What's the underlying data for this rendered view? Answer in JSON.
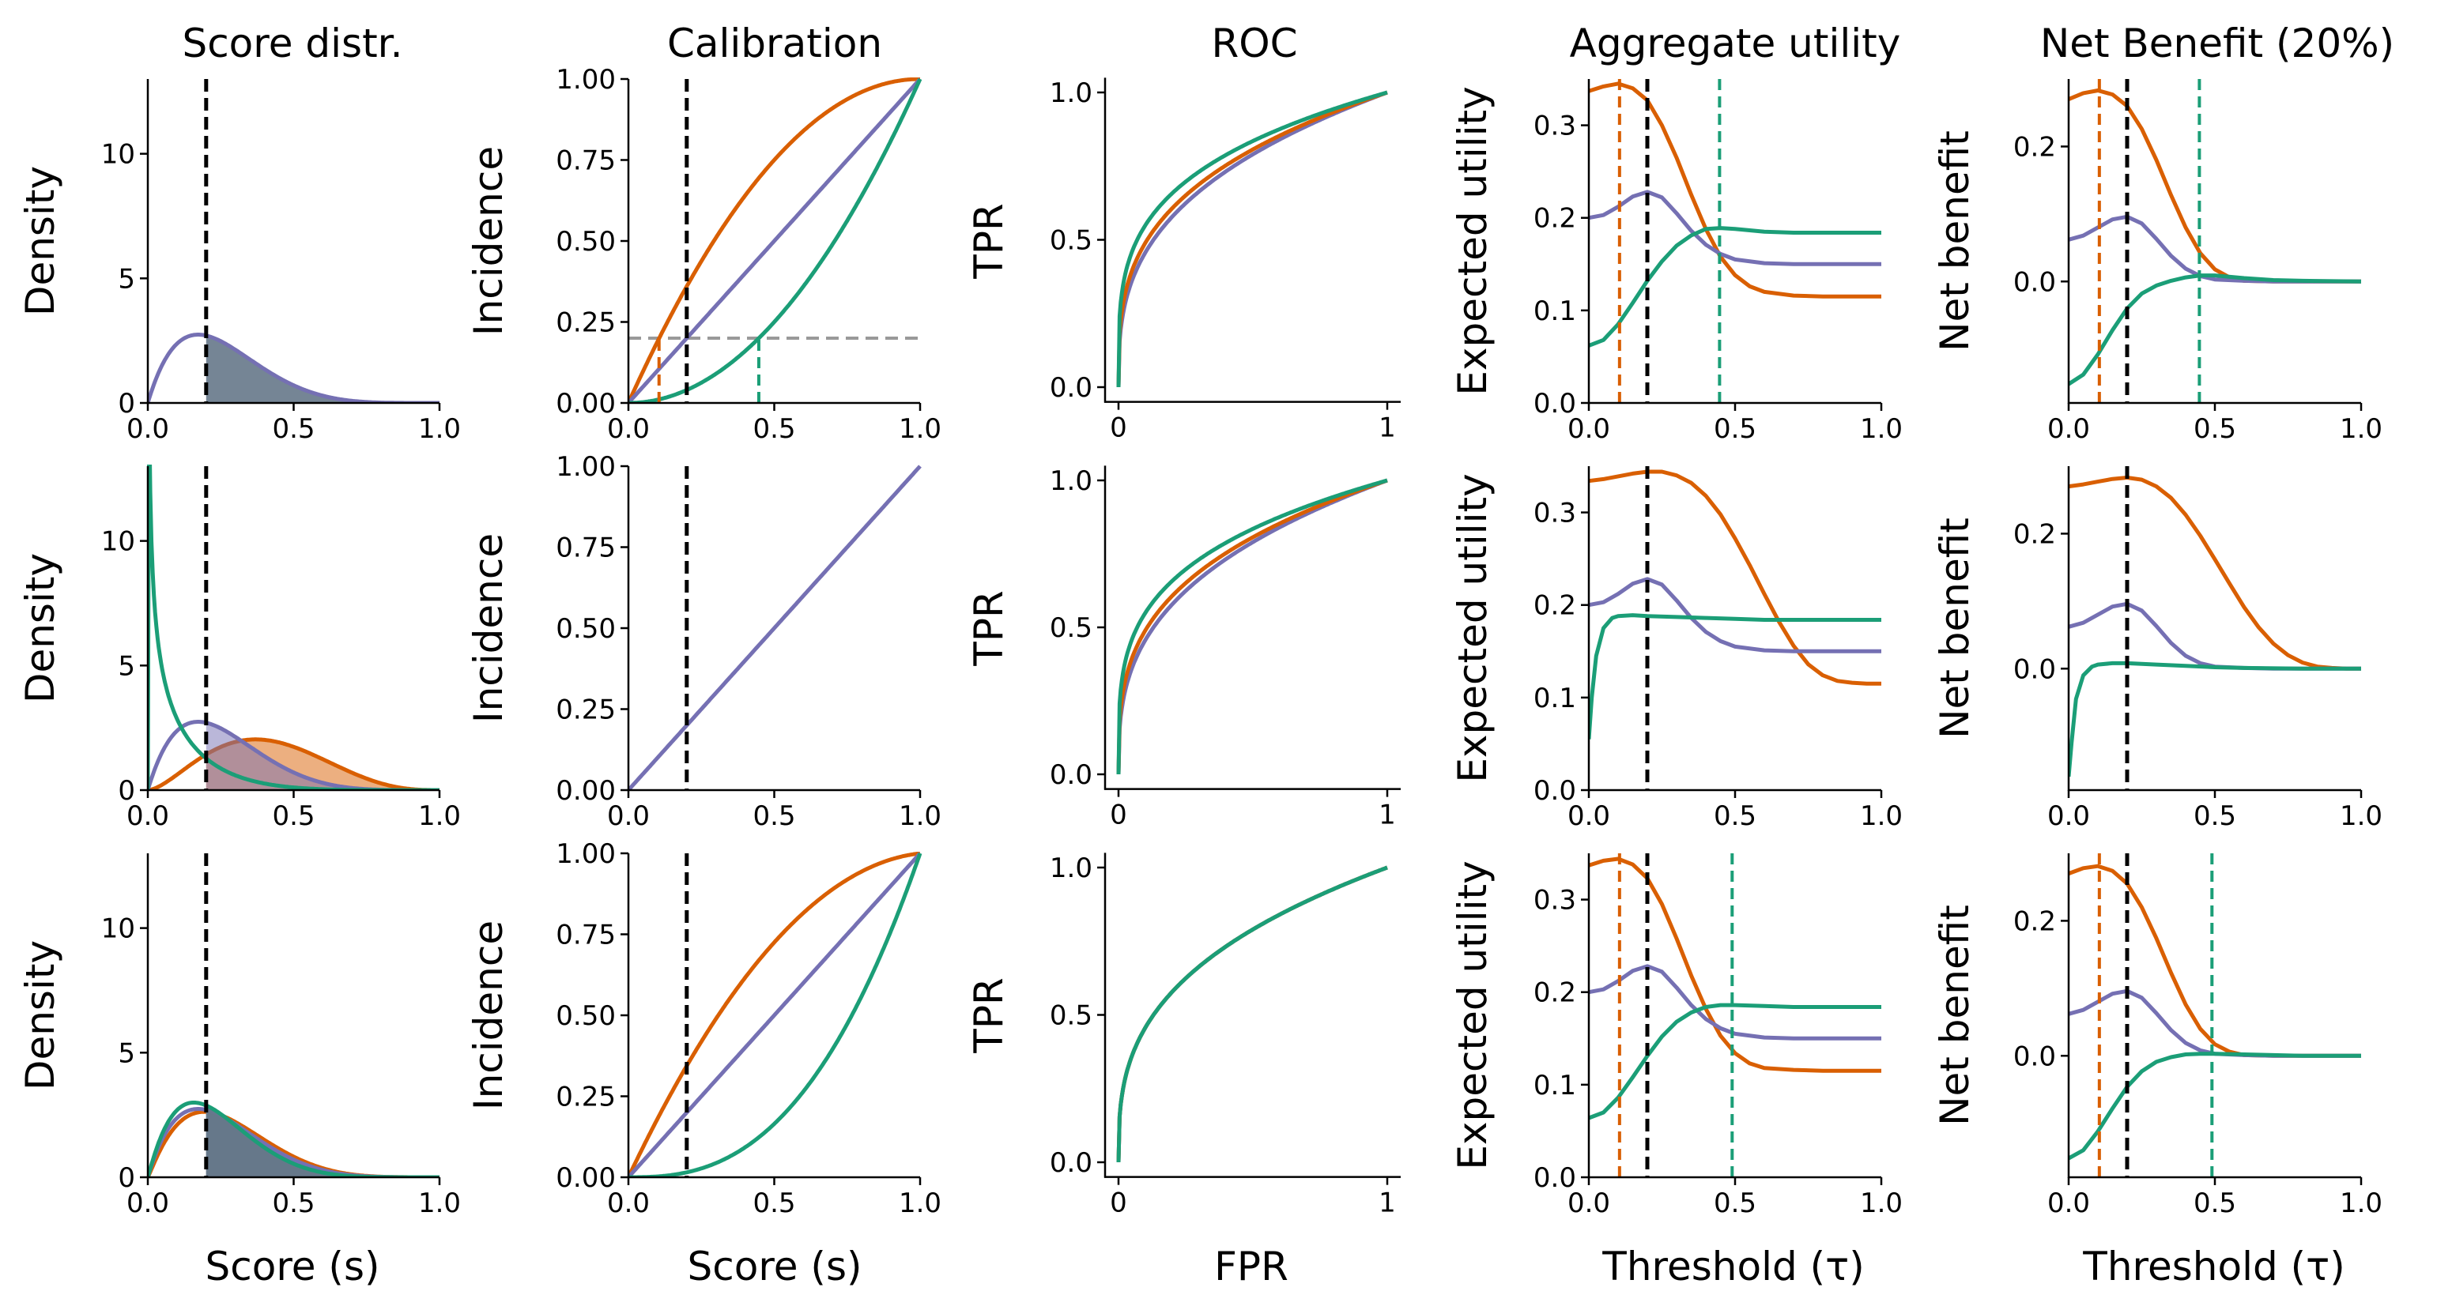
{
  "colors": {
    "orange": "#d95f02",
    "green": "#1b9e77",
    "purple": "#7570b3",
    "threshold": "#000000",
    "prevalence": "#999999",
    "overlap_fill": "#66788a"
  },
  "column_titles": [
    "Score distr.",
    "Calibration",
    "ROC",
    "Aggregate utility",
    "Net Benefit (20%)"
  ],
  "column_ylabels": [
    "Density",
    "Incidence",
    "TPR",
    "Expected utility",
    "Net benefit"
  ],
  "column_xlabels": [
    "Score (s)",
    "Score (s)",
    "FPR",
    "Threshold (τ)",
    "Threshold (τ)"
  ],
  "ticks": {
    "unit_x": [
      "0.0",
      "0.5",
      "1.0"
    ],
    "roc_x": [
      "0",
      "1"
    ],
    "density_y": [
      "0",
      "5",
      "10"
    ],
    "calibration_y": [
      "0.00",
      "0.25",
      "0.50",
      "0.75",
      "1.00"
    ],
    "roc_y": [
      "0.0",
      "0.5",
      "1.0"
    ],
    "utility_y": [
      "0.0",
      "0.1",
      "0.2",
      "0.3"
    ],
    "netbenefit_y": [
      "0.0",
      "0.2"
    ]
  },
  "chart_data": [
    {
      "row": 1,
      "col": 1,
      "type": "area",
      "title": "Score distr.",
      "ylabel": "Density",
      "xlim": [
        0,
        1
      ],
      "ylim": [
        0,
        13
      ],
      "threshold": 0.2,
      "curve": "beta",
      "fill": "overlap_fill",
      "series": [
        {
          "color": "purple",
          "a": 2,
          "b": 5.8
        }
      ]
    },
    {
      "row": 1,
      "col": 2,
      "type": "line",
      "title": "Calibration",
      "ylabel": "Incidence",
      "xlim": [
        0,
        1
      ],
      "ylim": [
        0,
        1
      ],
      "threshold": 0.2,
      "prevalence": 0.2,
      "series": [
        {
          "color": "orange",
          "curve": "over",
          "k": 1
        },
        {
          "color": "purple",
          "curve": "identity"
        },
        {
          "color": "green",
          "curve": "power",
          "k": 2
        }
      ],
      "markers": [
        {
          "color": "orange",
          "x": 0.105
        },
        {
          "color": "green",
          "x": 0.447
        }
      ]
    },
    {
      "row": 1,
      "col": 3,
      "type": "line",
      "title": "ROC",
      "ylabel": "TPR",
      "xlim": [
        -0.05,
        1.05
      ],
      "ylim": [
        -0.05,
        1.05
      ],
      "series": [
        {
          "color": "purple",
          "power": 0.34
        },
        {
          "color": "orange",
          "power": 0.31
        },
        {
          "color": "green",
          "power": 0.26
        }
      ]
    },
    {
      "row": 1,
      "col": 4,
      "type": "line",
      "title": "Aggregate utility",
      "ylabel": "Expected utility",
      "xlim": [
        0,
        1
      ],
      "ylim": [
        0,
        0.35
      ],
      "threshold": 0.2,
      "series": [
        {
          "color": "orange",
          "x": [
            0,
            0.05,
            0.1,
            0.15,
            0.2,
            0.25,
            0.3,
            0.35,
            0.4,
            0.45,
            0.5,
            0.55,
            0.6,
            0.7,
            0.8,
            1.0
          ],
          "y": [
            0.337,
            0.342,
            0.345,
            0.34,
            0.327,
            0.3,
            0.265,
            0.225,
            0.188,
            0.158,
            0.138,
            0.126,
            0.12,
            0.116,
            0.115,
            0.115
          ]
        },
        {
          "color": "purple",
          "x": [
            0,
            0.05,
            0.1,
            0.15,
            0.2,
            0.25,
            0.3,
            0.35,
            0.4,
            0.45,
            0.5,
            0.6,
            0.7,
            0.8,
            1.0
          ],
          "y": [
            0.2,
            0.203,
            0.212,
            0.223,
            0.228,
            0.222,
            0.205,
            0.186,
            0.171,
            0.161,
            0.155,
            0.151,
            0.15,
            0.15,
            0.15
          ]
        },
        {
          "color": "green",
          "x": [
            0,
            0.05,
            0.1,
            0.15,
            0.2,
            0.25,
            0.3,
            0.35,
            0.4,
            0.45,
            0.5,
            0.6,
            0.7,
            0.8,
            1.0
          ],
          "y": [
            0.062,
            0.068,
            0.085,
            0.108,
            0.132,
            0.153,
            0.17,
            0.181,
            0.188,
            0.189,
            0.188,
            0.185,
            0.184,
            0.184,
            0.184
          ]
        }
      ],
      "markers": [
        {
          "color": "orange",
          "x": 0.105
        },
        {
          "color": "green",
          "x": 0.447
        }
      ]
    },
    {
      "row": 1,
      "col": 5,
      "type": "line",
      "title": "Net Benefit (20%)",
      "ylabel": "Net benefit",
      "xlim": [
        0,
        1
      ],
      "ylim": [
        -0.18,
        0.3
      ],
      "threshold": 0.2,
      "series": [
        {
          "color": "orange",
          "x": [
            0,
            0.05,
            0.1,
            0.15,
            0.2,
            0.25,
            0.3,
            0.35,
            0.4,
            0.45,
            0.5,
            0.55,
            0.6,
            0.7,
            0.8,
            1.0
          ],
          "y": [
            0.27,
            0.279,
            0.283,
            0.277,
            0.26,
            0.226,
            0.18,
            0.128,
            0.08,
            0.042,
            0.018,
            0.006,
            0.001,
            0,
            0,
            0
          ]
        },
        {
          "color": "purple",
          "x": [
            0,
            0.05,
            0.1,
            0.15,
            0.2,
            0.25,
            0.3,
            0.35,
            0.4,
            0.45,
            0.5,
            0.6,
            0.7,
            0.8,
            1.0
          ],
          "y": [
            0.062,
            0.068,
            0.08,
            0.092,
            0.096,
            0.086,
            0.063,
            0.038,
            0.019,
            0.008,
            0.003,
            0.001,
            0,
            0,
            0
          ]
        },
        {
          "color": "green",
          "x": [
            0,
            0.05,
            0.1,
            0.15,
            0.2,
            0.25,
            0.3,
            0.35,
            0.4,
            0.45,
            0.5,
            0.6,
            0.7,
            0.8,
            1.0
          ],
          "y": [
            -0.152,
            -0.138,
            -0.108,
            -0.072,
            -0.04,
            -0.018,
            -0.006,
            0.001,
            0.006,
            0.009,
            0.009,
            0.005,
            0.002,
            0.001,
            0
          ]
        }
      ],
      "markers": [
        {
          "color": "orange",
          "x": 0.105
        },
        {
          "color": "green",
          "x": 0.447
        }
      ]
    },
    {
      "row": 2,
      "col": 1,
      "type": "area",
      "ylabel": "Density",
      "xlim": [
        0,
        1
      ],
      "ylim": [
        0,
        13
      ],
      "threshold": 0.2,
      "curve": "beta",
      "series": [
        {
          "color": "orange",
          "a": 2.7,
          "b": 3.9,
          "fill_opacity": 0.5
        },
        {
          "color": "purple",
          "a": 2,
          "b": 5.8,
          "fill_opacity": 0.5
        },
        {
          "color": "green",
          "a": 0.6,
          "b": 5.5,
          "fill_opacity": 0
        }
      ]
    },
    {
      "row": 2,
      "col": 2,
      "type": "line",
      "ylabel": "Incidence",
      "xlim": [
        0,
        1
      ],
      "ylim": [
        0,
        1
      ],
      "threshold": 0.2,
      "series": [
        {
          "color": "purple",
          "curve": "identity"
        }
      ]
    },
    {
      "row": 2,
      "col": 3,
      "type": "line",
      "ylabel": "TPR",
      "xlim": [
        -0.05,
        1.05
      ],
      "ylim": [
        -0.05,
        1.05
      ],
      "series": [
        {
          "color": "purple",
          "power": 0.34
        },
        {
          "color": "orange",
          "power": 0.31
        },
        {
          "color": "green",
          "power": 0.26
        }
      ]
    },
    {
      "row": 2,
      "col": 4,
      "type": "line",
      "ylabel": "Expected utility",
      "xlim": [
        0,
        1
      ],
      "ylim": [
        0,
        0.35
      ],
      "threshold": 0.2,
      "series": [
        {
          "color": "orange",
          "x": [
            0,
            0.05,
            0.1,
            0.15,
            0.2,
            0.25,
            0.3,
            0.35,
            0.4,
            0.45,
            0.5,
            0.55,
            0.6,
            0.65,
            0.7,
            0.75,
            0.8,
            0.85,
            0.9,
            0.95,
            1.0
          ],
          "y": [
            0.334,
            0.336,
            0.339,
            0.342,
            0.344,
            0.344,
            0.34,
            0.332,
            0.318,
            0.298,
            0.272,
            0.243,
            0.212,
            0.182,
            0.156,
            0.136,
            0.124,
            0.118,
            0.116,
            0.115,
            0.115
          ]
        },
        {
          "color": "purple",
          "x": [
            0,
            0.05,
            0.1,
            0.15,
            0.2,
            0.25,
            0.3,
            0.35,
            0.4,
            0.45,
            0.5,
            0.6,
            0.7,
            0.8,
            1.0
          ],
          "y": [
            0.2,
            0.203,
            0.212,
            0.223,
            0.228,
            0.222,
            0.205,
            0.186,
            0.171,
            0.161,
            0.155,
            0.151,
            0.15,
            0.15,
            0.15
          ]
        },
        {
          "color": "green",
          "x": [
            0,
            0.01,
            0.025,
            0.05,
            0.08,
            0.1,
            0.15,
            0.2,
            0.3,
            0.4,
            0.5,
            0.6,
            0.8,
            1.0
          ],
          "y": [
            0.055,
            0.1,
            0.145,
            0.175,
            0.186,
            0.188,
            0.189,
            0.188,
            0.187,
            0.186,
            0.185,
            0.184,
            0.184,
            0.184
          ]
        }
      ]
    },
    {
      "row": 2,
      "col": 5,
      "type": "line",
      "ylabel": "Net benefit",
      "xlim": [
        0,
        1
      ],
      "ylim": [
        -0.18,
        0.3
      ],
      "threshold": 0.2,
      "series": [
        {
          "color": "orange",
          "x": [
            0,
            0.05,
            0.1,
            0.15,
            0.2,
            0.25,
            0.3,
            0.35,
            0.4,
            0.45,
            0.5,
            0.55,
            0.6,
            0.65,
            0.7,
            0.75,
            0.8,
            0.85,
            0.9,
            0.95,
            1.0
          ],
          "y": [
            0.27,
            0.273,
            0.277,
            0.281,
            0.283,
            0.28,
            0.27,
            0.253,
            0.228,
            0.197,
            0.162,
            0.126,
            0.091,
            0.061,
            0.037,
            0.02,
            0.009,
            0.003,
            0.001,
            0,
            0
          ]
        },
        {
          "color": "purple",
          "x": [
            0,
            0.05,
            0.1,
            0.15,
            0.2,
            0.25,
            0.3,
            0.35,
            0.4,
            0.45,
            0.5,
            0.6,
            0.7,
            0.8,
            1.0
          ],
          "y": [
            0.062,
            0.068,
            0.08,
            0.092,
            0.096,
            0.086,
            0.063,
            0.038,
            0.019,
            0.008,
            0.003,
            0.001,
            0,
            0,
            0
          ]
        },
        {
          "color": "green",
          "x": [
            0,
            0.01,
            0.025,
            0.05,
            0.08,
            0.1,
            0.15,
            0.2,
            0.3,
            0.4,
            0.5,
            0.6,
            0.8,
            1.0
          ],
          "y": [
            -0.16,
            -0.11,
            -0.045,
            -0.01,
            0.003,
            0.006,
            0.008,
            0.008,
            0.006,
            0.004,
            0.002,
            0.001,
            0,
            0
          ]
        }
      ]
    },
    {
      "row": 3,
      "col": 1,
      "type": "area",
      "ylabel": "Density",
      "xlabel": "Score (s)",
      "xlim": [
        0,
        1
      ],
      "ylim": [
        0,
        13
      ],
      "threshold": 0.2,
      "curve": "beta",
      "fill": "overlap_fill",
      "series": [
        {
          "color": "orange",
          "a": 2.1,
          "b": 5.6
        },
        {
          "color": "purple",
          "a": 2,
          "b": 5.8
        },
        {
          "color": "green",
          "a": 2.05,
          "b": 6.6
        }
      ]
    },
    {
      "row": 3,
      "col": 2,
      "type": "line",
      "ylabel": "Incidence",
      "xlabel": "Score (s)",
      "xlim": [
        0,
        1
      ],
      "ylim": [
        0,
        1
      ],
      "threshold": 0.2,
      "series": [
        {
          "color": "orange",
          "curve": "over",
          "k": 0.9
        },
        {
          "color": "purple",
          "curve": "identity"
        },
        {
          "color": "green",
          "curve": "power",
          "k": 2.6
        }
      ]
    },
    {
      "row": 3,
      "col": 3,
      "type": "line",
      "ylabel": "TPR",
      "xlabel": "FPR",
      "xlim": [
        -0.05,
        1.05
      ],
      "ylim": [
        -0.05,
        1.05
      ],
      "series": [
        {
          "color": "purple",
          "power": 0.34
        },
        {
          "color": "orange",
          "power": 0.34
        },
        {
          "color": "green",
          "power": 0.34
        }
      ]
    },
    {
      "row": 3,
      "col": 4,
      "type": "line",
      "ylabel": "Expected utility",
      "xlabel": "Threshold (τ)",
      "xlim": [
        0,
        1
      ],
      "ylim": [
        0,
        0.35
      ],
      "threshold": 0.2,
      "series": [
        {
          "color": "orange",
          "x": [
            0,
            0.05,
            0.1,
            0.15,
            0.2,
            0.25,
            0.3,
            0.35,
            0.4,
            0.45,
            0.5,
            0.55,
            0.6,
            0.7,
            0.8,
            1.0
          ],
          "y": [
            0.337,
            0.342,
            0.344,
            0.338,
            0.323,
            0.295,
            0.258,
            0.218,
            0.182,
            0.153,
            0.134,
            0.123,
            0.118,
            0.116,
            0.115,
            0.115
          ]
        },
        {
          "color": "purple",
          "x": [
            0,
            0.05,
            0.1,
            0.15,
            0.2,
            0.25,
            0.3,
            0.35,
            0.4,
            0.45,
            0.5,
            0.6,
            0.7,
            0.8,
            1.0
          ],
          "y": [
            0.2,
            0.203,
            0.212,
            0.223,
            0.228,
            0.222,
            0.205,
            0.186,
            0.171,
            0.161,
            0.155,
            0.151,
            0.15,
            0.15,
            0.15
          ]
        },
        {
          "color": "green",
          "x": [
            0,
            0.05,
            0.1,
            0.15,
            0.2,
            0.25,
            0.3,
            0.35,
            0.4,
            0.45,
            0.5,
            0.6,
            0.7,
            0.8,
            1.0
          ],
          "y": [
            0.064,
            0.07,
            0.086,
            0.108,
            0.131,
            0.152,
            0.168,
            0.178,
            0.184,
            0.186,
            0.186,
            0.185,
            0.184,
            0.184,
            0.184
          ]
        }
      ],
      "markers": [
        {
          "color": "orange",
          "x": 0.105
        },
        {
          "color": "green",
          "x": 0.49
        }
      ]
    },
    {
      "row": 3,
      "col": 5,
      "type": "line",
      "ylabel": "Net benefit",
      "xlabel": "Threshold (τ)",
      "xlim": [
        0,
        1
      ],
      "ylim": [
        -0.18,
        0.3
      ],
      "threshold": 0.2,
      "series": [
        {
          "color": "orange",
          "x": [
            0,
            0.05,
            0.1,
            0.15,
            0.2,
            0.25,
            0.3,
            0.35,
            0.4,
            0.45,
            0.5,
            0.55,
            0.6,
            0.7,
            0.8,
            1.0
          ],
          "y": [
            0.27,
            0.278,
            0.281,
            0.274,
            0.255,
            0.22,
            0.174,
            0.123,
            0.076,
            0.04,
            0.017,
            0.006,
            0.001,
            0,
            0,
            0
          ]
        },
        {
          "color": "purple",
          "x": [
            0,
            0.05,
            0.1,
            0.15,
            0.2,
            0.25,
            0.3,
            0.35,
            0.4,
            0.45,
            0.5,
            0.6,
            0.7,
            0.8,
            1.0
          ],
          "y": [
            0.062,
            0.068,
            0.08,
            0.092,
            0.096,
            0.086,
            0.063,
            0.038,
            0.019,
            0.008,
            0.003,
            0.001,
            0,
            0,
            0
          ]
        },
        {
          "color": "green",
          "x": [
            0,
            0.05,
            0.1,
            0.15,
            0.2,
            0.25,
            0.3,
            0.35,
            0.4,
            0.45,
            0.5,
            0.6,
            0.7,
            0.8,
            1.0
          ],
          "y": [
            -0.152,
            -0.14,
            -0.112,
            -0.078,
            -0.046,
            -0.023,
            -0.009,
            -0.002,
            0.002,
            0.003,
            0.003,
            0.002,
            0.001,
            0,
            0
          ]
        }
      ],
      "markers": [
        {
          "color": "orange",
          "x": 0.105
        },
        {
          "color": "green",
          "x": 0.49
        }
      ]
    }
  ]
}
